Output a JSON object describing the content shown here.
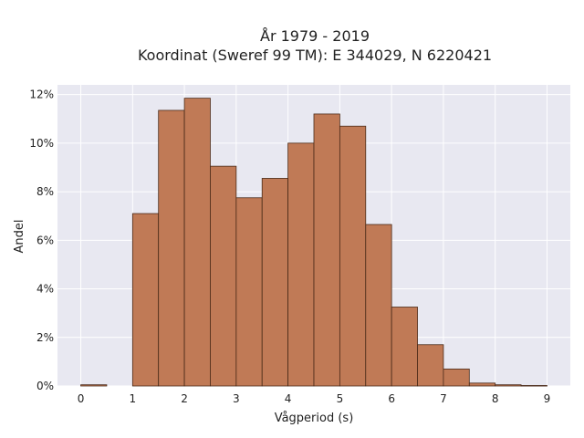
{
  "chart_data": {
    "type": "bar",
    "title": "År 1979 - 2019",
    "subtitle": "Koordinat (Sweref 99 TM): E 344029, N 6220421",
    "xlabel": "Vågperiod (s)",
    "ylabel": "Andel",
    "bin_width": 0.5,
    "bins": [
      {
        "x0": 0.0,
        "x1": 0.5,
        "value": 0.05
      },
      {
        "x0": 1.0,
        "x1": 1.5,
        "value": 7.1
      },
      {
        "x0": 1.5,
        "x1": 2.0,
        "value": 11.35
      },
      {
        "x0": 2.0,
        "x1": 2.5,
        "value": 11.85
      },
      {
        "x0": 2.5,
        "x1": 3.0,
        "value": 9.05
      },
      {
        "x0": 3.0,
        "x1": 3.5,
        "value": 7.75
      },
      {
        "x0": 3.5,
        "x1": 4.0,
        "value": 8.55
      },
      {
        "x0": 4.0,
        "x1": 4.5,
        "value": 10.0
      },
      {
        "x0": 4.5,
        "x1": 5.0,
        "value": 11.2
      },
      {
        "x0": 5.0,
        "x1": 5.5,
        "value": 10.7
      },
      {
        "x0": 5.5,
        "x1": 6.0,
        "value": 6.65
      },
      {
        "x0": 6.0,
        "x1": 6.5,
        "value": 3.25
      },
      {
        "x0": 6.5,
        "x1": 7.0,
        "value": 1.7
      },
      {
        "x0": 7.0,
        "x1": 7.5,
        "value": 0.7
      },
      {
        "x0": 7.5,
        "x1": 8.0,
        "value": 0.12
      },
      {
        "x0": 8.0,
        "x1": 8.5,
        "value": 0.05
      },
      {
        "x0": 8.5,
        "x1": 9.0,
        "value": 0.02
      }
    ],
    "xlim": [
      -0.45,
      9.45
    ],
    "ylim": [
      0,
      12.4
    ],
    "x_ticks": [
      0,
      1,
      2,
      3,
      4,
      5,
      6,
      7,
      8,
      9
    ],
    "x_tick_labels": [
      "0",
      "1",
      "2",
      "3",
      "4",
      "5",
      "6",
      "7",
      "8",
      "9"
    ],
    "y_ticks": [
      0,
      2,
      4,
      6,
      8,
      10,
      12
    ],
    "y_tick_labels": [
      "0%",
      "2%",
      "4%",
      "6%",
      "8%",
      "10%",
      "12%"
    ],
    "grid": true,
    "colors": {
      "bar_fill": "#c07a56",
      "bar_edge": "#4a2a18",
      "plot_background": "#e8e8f1",
      "grid": "#ffffff"
    }
  }
}
